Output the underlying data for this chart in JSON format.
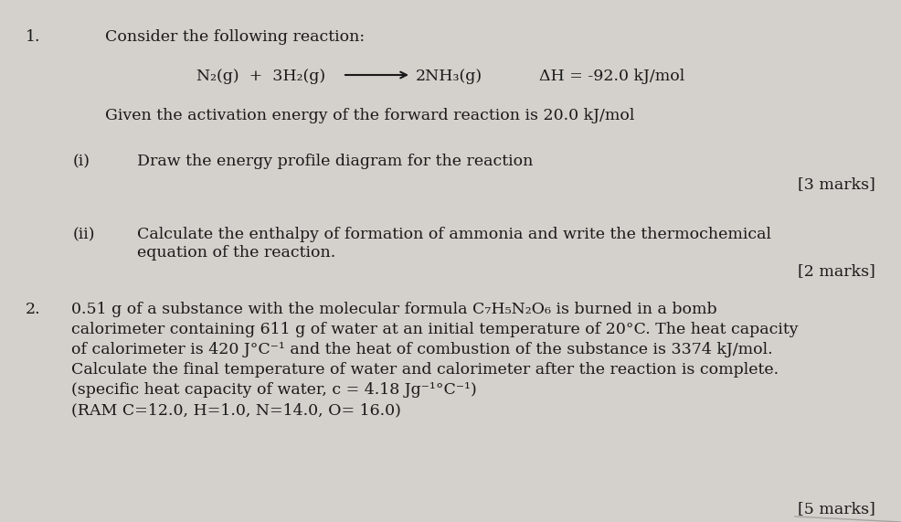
{
  "bg_color": "#d4d0cb",
  "text_color": "#1a1a1a",
  "fig_width": 9.86,
  "fig_height": 5.71,
  "number1": "1.",
  "line1": "Consider the following reaction:",
  "reaction_left": "N₂(g)  +  3H₂(g)",
  "reaction_right": "2NH₃(g)",
  "reaction_dH": "ΔH = -92.0 kJ/mol",
  "line2": "Given the activation energy of the forward reaction is 20.0 kJ/mol",
  "part_i_label": "(i)",
  "part_i_text": "Draw the energy profile diagram for the reaction",
  "marks_i": "[3 marks]",
  "part_ii_label": "(ii)",
  "part_ii_text1": "Calculate the enthalpy of formation of ammonia and write the thermochemical",
  "part_ii_text2": "equation of the reaction.",
  "marks_ii": "[2 marks]",
  "number2": "2.",
  "para2_line1": "0.51 g of a substance with the molecular formula C₇H₅N₂O₆ is burned in a bomb",
  "para2_line2": "calorimeter containing 611 g of water at an initial temperature of 20°C. The heat capacity",
  "para2_line3": "of calorimeter is 420 J°C⁻¹ and the heat of combustion of the substance is 3374 kJ/mol.",
  "para2_line4": "Calculate the final temperature of water and calorimeter after the reaction is complete.",
  "para2_line5": "(specific heat capacity of water, c = 4.18 Jg⁻¹°C⁻¹)",
  "para2_line6": "(RAM C=12.0, H=1.0, N=14.0, O= 16.0)",
  "marks_2": "[5 marks]",
  "font_size": 12.5,
  "font_family": "DejaVu Serif"
}
